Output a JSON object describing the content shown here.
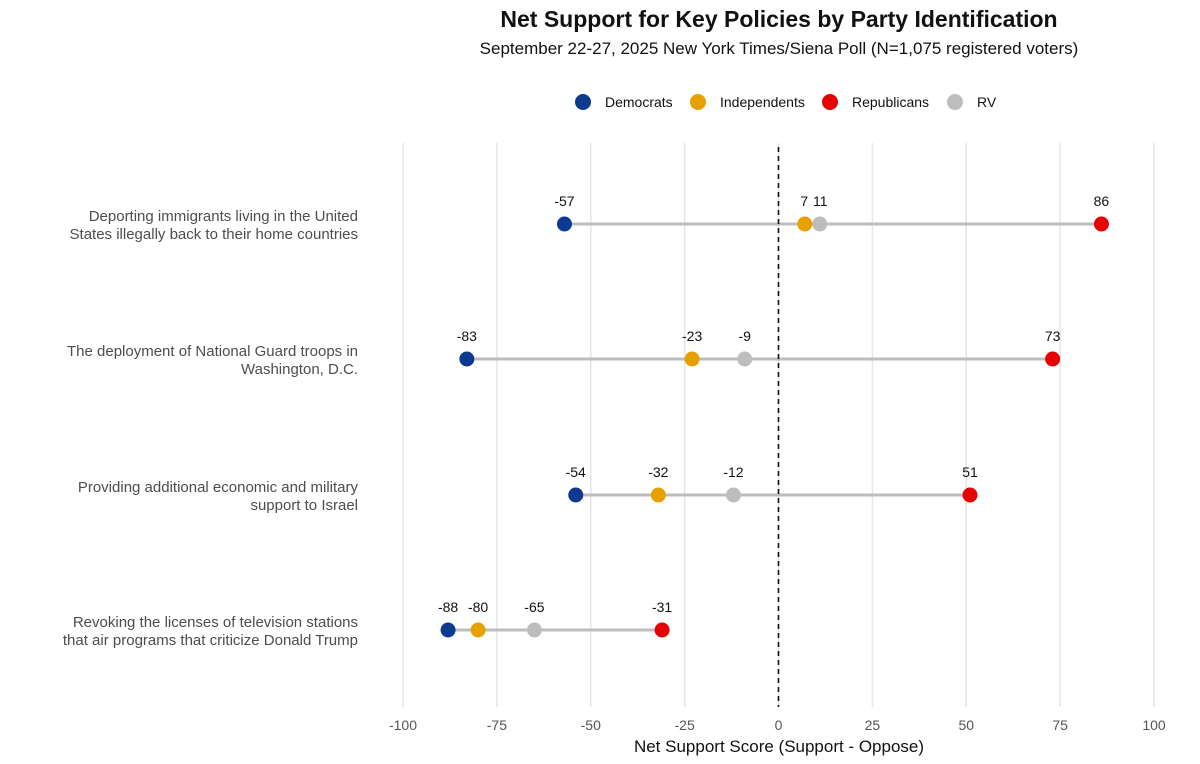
{
  "chart_data": {
    "type": "dot-range",
    "title": "Net Support for Key Policies by Party Identification",
    "subtitle": "September 22-27, 2025 New York Times/Siena Poll (N=1,075 registered voters)",
    "xlabel": "Net Support Score (Support - Oppose)",
    "ylabel": "",
    "xlim": [
      -100,
      100
    ],
    "xticks": [
      -100,
      -75,
      -50,
      -25,
      0,
      25,
      50,
      75,
      100
    ],
    "reference_line": 0,
    "legend_position": "top",
    "series": [
      {
        "name": "Democrats",
        "color": "#0d3a8e"
      },
      {
        "name": "Independents",
        "color": "#e6a100"
      },
      {
        "name": "Republicans",
        "color": "#e60000"
      },
      {
        "name": "RV",
        "color": "#bdbdbd"
      }
    ],
    "categories": [
      {
        "lines": [
          "Deporting immigrants living in the United",
          "States illegally back to their home countries"
        ],
        "values": {
          "Democrats": -57,
          "Independents": 7,
          "Republicans": 86,
          "RV": 11
        }
      },
      {
        "lines": [
          "The deployment of National Guard troops in",
          "Washington, D.C."
        ],
        "values": {
          "Democrats": -83,
          "Independents": -23,
          "Republicans": 73,
          "RV": -9
        }
      },
      {
        "lines": [
          "Providing additional economic and military",
          "support to Israel"
        ],
        "values": {
          "Democrats": -54,
          "Independents": -32,
          "Republicans": 51,
          "RV": -12
        }
      },
      {
        "lines": [
          "Revoking the licenses of television stations",
          "that air programs that criticize Donald Trump"
        ],
        "values": {
          "Democrats": -88,
          "Independents": -80,
          "Republicans": -31,
          "RV": -65
        }
      }
    ]
  }
}
